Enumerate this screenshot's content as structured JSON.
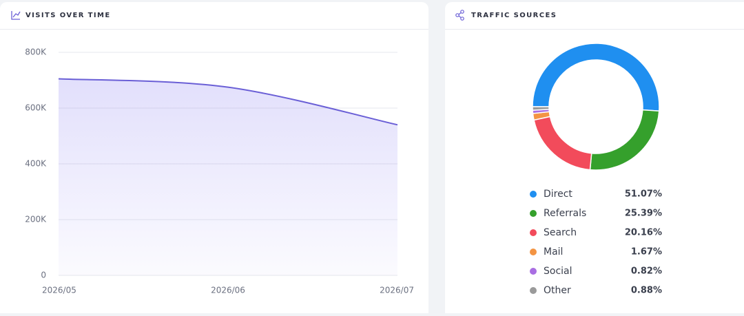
{
  "chart_data": [
    {
      "type": "area",
      "title": "VISITS OVER TIME",
      "categories": [
        "2026/05",
        "2026/06",
        "2026/07"
      ],
      "values": [
        705000,
        675000,
        540000
      ],
      "color": "#6a5fd6",
      "ylim": [
        0,
        800000
      ],
      "yticks": [
        0,
        {
          "value": 200000,
          "label": "200K"
        },
        {
          "value": 400000,
          "label": "400K"
        },
        {
          "value": 600000,
          "label": "600K"
        },
        {
          "value": 800000,
          "label": "800K"
        }
      ],
      "grid": true
    },
    {
      "type": "donut",
      "title": "TRAFFIC SOURCES",
      "categories": [
        "Direct",
        "Referrals",
        "Search",
        "Mail",
        "Social",
        "Other"
      ],
      "values": [
        51.07,
        25.39,
        20.16,
        1.67,
        0.82,
        0.88
      ],
      "value_labels": [
        "51.07%",
        "25.39%",
        "20.16%",
        "1.67%",
        "0.82%",
        "0.88%"
      ],
      "colors": [
        "#1f8ff0",
        "#35a02c",
        "#f24b5b",
        "#f39443",
        "#a96ee2",
        "#9a9a9a"
      ]
    }
  ]
}
